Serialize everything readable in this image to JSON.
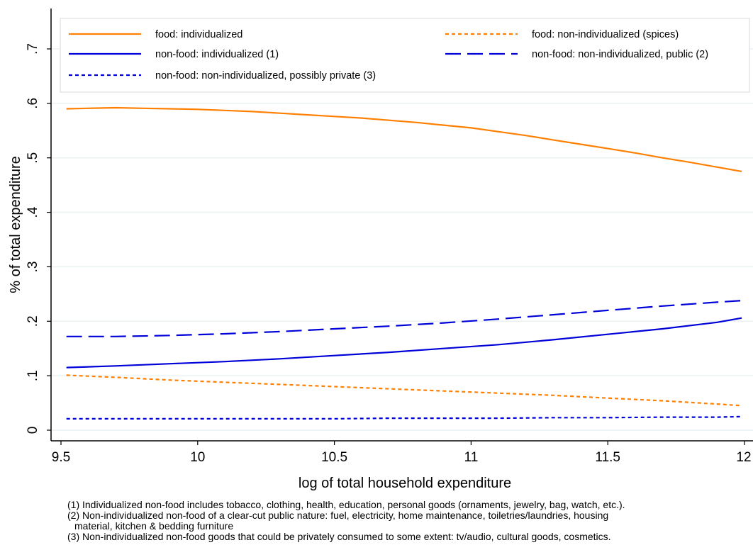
{
  "chart_data": {
    "type": "line",
    "xlabel": "log of total household expenditure",
    "ylabel": "% of total expenditure",
    "xlim": [
      9.5,
      12
    ],
    "ylim": [
      0,
      0.75
    ],
    "x_ticks": [
      9.5,
      10,
      10.5,
      11,
      11.5,
      12
    ],
    "x_tick_labels": [
      "9.5",
      "10",
      "10.5",
      "11",
      "11.5",
      "12"
    ],
    "y_ticks": [
      0,
      0.1,
      0.2,
      0.3,
      0.4,
      0.5,
      0.6,
      0.7
    ],
    "y_tick_labels": [
      "0",
      ".1",
      ".2",
      ".3",
      ".4",
      ".5",
      ".6",
      ".7"
    ],
    "grid": true,
    "legend_position": "top",
    "series": [
      {
        "name": "food: individualized",
        "color": "#ff8000",
        "style": "solid",
        "x": [
          9.52,
          9.6,
          9.7,
          9.8,
          9.9,
          10.0,
          10.1,
          10.2,
          10.3,
          10.4,
          10.5,
          10.6,
          10.7,
          10.8,
          10.9,
          11.0,
          11.1,
          11.2,
          11.3,
          11.4,
          11.5,
          11.6,
          11.7,
          11.8,
          11.9,
          11.99
        ],
        "y": [
          0.59,
          0.591,
          0.592,
          0.591,
          0.59,
          0.589,
          0.587,
          0.585,
          0.582,
          0.579,
          0.576,
          0.573,
          0.569,
          0.565,
          0.56,
          0.555,
          0.548,
          0.541,
          0.533,
          0.525,
          0.517,
          0.509,
          0.5,
          0.492,
          0.483,
          0.475
        ]
      },
      {
        "name": "food: non-individualized (spices)",
        "color": "#ff8000",
        "style": "short-dash",
        "x": [
          9.52,
          9.7,
          9.9,
          10.1,
          10.3,
          10.5,
          10.7,
          10.9,
          11.1,
          11.3,
          11.5,
          11.7,
          11.9,
          11.99
        ],
        "y": [
          0.101,
          0.097,
          0.092,
          0.088,
          0.084,
          0.08,
          0.076,
          0.072,
          0.068,
          0.064,
          0.059,
          0.054,
          0.048,
          0.045
        ]
      },
      {
        "name": "non-food: individualized (1)",
        "color": "#0000d8",
        "style": "solid",
        "x": [
          9.52,
          9.7,
          9.9,
          10.1,
          10.3,
          10.5,
          10.7,
          10.9,
          11.1,
          11.3,
          11.5,
          11.7,
          11.9,
          11.99
        ],
        "y": [
          0.115,
          0.118,
          0.122,
          0.126,
          0.131,
          0.137,
          0.143,
          0.15,
          0.157,
          0.166,
          0.176,
          0.186,
          0.198,
          0.206
        ]
      },
      {
        "name": "non-food: non-individualized, public (2)",
        "color": "#0000d8",
        "style": "long-dash",
        "x": [
          9.52,
          9.7,
          9.9,
          10.1,
          10.3,
          10.5,
          10.7,
          10.9,
          11.1,
          11.3,
          11.5,
          11.7,
          11.9,
          11.99
        ],
        "y": [
          0.172,
          0.172,
          0.174,
          0.177,
          0.181,
          0.186,
          0.191,
          0.197,
          0.204,
          0.212,
          0.22,
          0.228,
          0.235,
          0.238
        ]
      },
      {
        "name": "non-food: non-individualized, possibly private (3)",
        "color": "#0000d8",
        "style": "short-dash",
        "x": [
          9.52,
          9.7,
          9.9,
          10.1,
          10.3,
          10.5,
          10.7,
          10.9,
          11.1,
          11.3,
          11.5,
          11.7,
          11.9,
          11.99
        ],
        "y": [
          0.021,
          0.021,
          0.021,
          0.021,
          0.021,
          0.021,
          0.022,
          0.022,
          0.022,
          0.023,
          0.023,
          0.024,
          0.024,
          0.025
        ]
      }
    ]
  },
  "notes": [
    "(1) Individualized non-food includes tobacco, clothing, health, education, personal goods (ornaments, jewelry, bag, watch, etc.).",
    "(2) Non-individualized non-food of a clear-cut public nature: fuel, electricity, home maintenance, toiletries/laundries, housing",
    "material, kitchen & bedding furniture",
    "(3) Non-individualized non-food goods that could be privately consumed to some extent: tv/audio, cultural goods, cosmetics."
  ]
}
